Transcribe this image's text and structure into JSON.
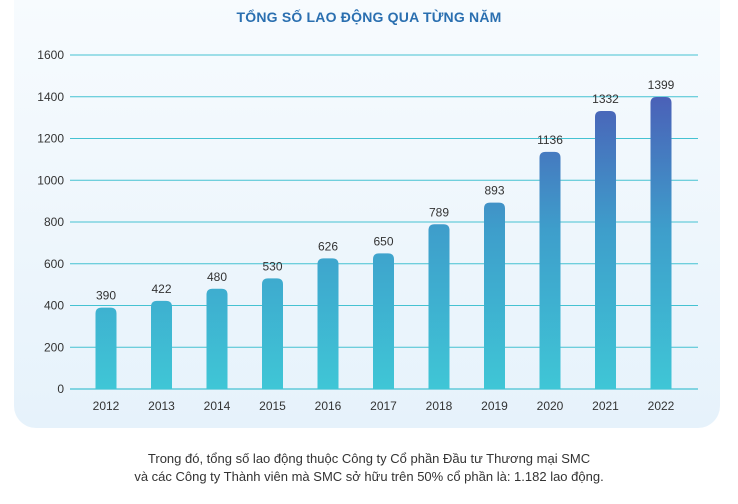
{
  "chart_data": {
    "type": "bar",
    "title": "TỔNG SỐ LAO ĐỘNG QUA TỪNG NĂM",
    "xlabel": "",
    "ylabel": "",
    "categories": [
      "2012",
      "2013",
      "2014",
      "2015",
      "2016",
      "2017",
      "2018",
      "2019",
      "2020",
      "2021",
      "2022"
    ],
    "values": [
      390,
      422,
      480,
      530,
      626,
      650,
      789,
      893,
      1136,
      1332,
      1399
    ],
    "ylim": [
      0,
      1600
    ],
    "yticks": [
      0,
      200,
      400,
      600,
      800,
      1000,
      1200,
      1400,
      1600
    ],
    "grid": true,
    "colors": {
      "bar_top_high": "#4a62b8",
      "bar_bottom": "#3fc6d6",
      "grid": "#45c2d2",
      "axis_text": "#333333",
      "title": "#2a6fb0"
    }
  },
  "caption": {
    "line1": "Trong đó, tổng số lao động thuộc Công ty Cổ phần Đầu tư Thương mại SMC",
    "line2": "và các Công ty Thành viên mà SMC sở hữu trên 50% cổ phần là: 1.182 lao động."
  }
}
